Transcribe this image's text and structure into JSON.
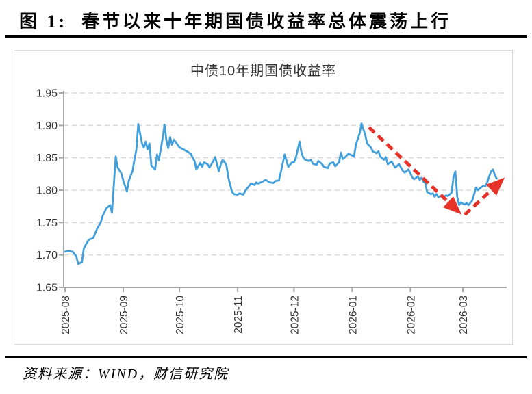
{
  "figure": {
    "title": "图 1:  春节以来十年期国债收益率总体震荡上行"
  },
  "chart_card": {
    "title": "中债10年期国债收益率"
  },
  "source": {
    "text": "资料来源：WIND，财信研究院"
  },
  "colors": {
    "line": "#41A0DC",
    "arrow": "#E63229",
    "grid": "#D9D9D9",
    "axis": "#A6A6A6",
    "label": "#333333"
  },
  "chart_data": {
    "type": "line",
    "title": "中债10年期国债收益率",
    "xlabel": "",
    "ylabel": "",
    "ylim": [
      1.65,
      1.95
    ],
    "yticks": [
      1.65,
      1.7,
      1.75,
      1.8,
      1.85,
      1.9,
      1.95
    ],
    "ytick_labels": [
      "1.65",
      "1.70",
      "1.75",
      "1.80",
      "1.85",
      "1.90",
      "1.95"
    ],
    "xticks": [
      "2025-08",
      "2025-09",
      "2025-10",
      "2025-11",
      "2025-12",
      "2026-01",
      "2026-02",
      "2026-03"
    ],
    "grid": "horizontal-dashed",
    "legend": "none",
    "series": [
      {
        "name": "中债10年期国债收益率",
        "color": "#41A0DC",
        "points": [
          [
            "2025-08-01",
            1.705
          ],
          [
            "2025-08-03",
            1.706
          ],
          [
            "2025-08-05",
            1.705
          ],
          [
            "2025-08-07",
            1.698
          ],
          [
            "2025-08-08",
            1.686
          ],
          [
            "2025-08-10",
            1.689
          ],
          [
            "2025-08-11",
            1.71
          ],
          [
            "2025-08-13",
            1.721
          ],
          [
            "2025-08-14",
            1.724
          ],
          [
            "2025-08-16",
            1.726
          ],
          [
            "2025-08-18",
            1.74
          ],
          [
            "2025-08-20",
            1.75
          ],
          [
            "2025-08-21",
            1.76
          ],
          [
            "2025-08-23",
            1.772
          ],
          [
            "2025-08-25",
            1.777
          ],
          [
            "2025-08-26",
            1.765
          ],
          [
            "2025-08-28",
            1.852
          ],
          [
            "2025-08-29",
            1.835
          ],
          [
            "2025-08-31",
            1.826
          ],
          [
            "2025-09-01",
            1.815
          ],
          [
            "2025-09-03",
            1.798
          ],
          [
            "2025-09-04",
            1.815
          ],
          [
            "2025-09-06",
            1.83
          ],
          [
            "2025-09-07",
            1.848
          ],
          [
            "2025-09-08",
            1.862
          ],
          [
            "2025-09-09",
            1.902
          ],
          [
            "2025-09-11",
            1.872
          ],
          [
            "2025-09-12",
            1.866
          ],
          [
            "2025-09-13",
            1.875
          ],
          [
            "2025-09-14",
            1.863
          ],
          [
            "2025-09-15",
            1.872
          ],
          [
            "2025-09-16",
            1.838
          ],
          [
            "2025-09-18",
            1.832
          ],
          [
            "2025-09-19",
            1.855
          ],
          [
            "2025-09-20",
            1.846
          ],
          [
            "2025-09-22",
            1.88
          ],
          [
            "2025-09-23",
            1.901
          ],
          [
            "2025-09-24",
            1.877
          ],
          [
            "2025-09-25",
            1.865
          ],
          [
            "2025-09-26",
            1.882
          ],
          [
            "2025-09-27",
            1.87
          ],
          [
            "2025-09-28",
            1.878
          ],
          [
            "2025-09-30",
            1.87
          ],
          [
            "2025-10-01",
            1.866
          ],
          [
            "2025-10-03",
            1.863
          ],
          [
            "2025-10-05",
            1.86
          ],
          [
            "2025-10-07",
            1.856
          ],
          [
            "2025-10-09",
            1.845
          ],
          [
            "2025-10-10",
            1.832
          ],
          [
            "2025-10-12",
            1.842
          ],
          [
            "2025-10-13",
            1.836
          ],
          [
            "2025-10-14",
            1.843
          ],
          [
            "2025-10-16",
            1.84
          ],
          [
            "2025-10-17",
            1.835
          ],
          [
            "2025-10-19",
            1.845
          ],
          [
            "2025-10-20",
            1.851
          ],
          [
            "2025-10-22",
            1.829
          ],
          [
            "2025-10-23",
            1.84
          ],
          [
            "2025-10-24",
            1.847
          ],
          [
            "2025-10-26",
            1.839
          ],
          [
            "2025-10-27",
            1.82
          ],
          [
            "2025-10-29",
            1.797
          ],
          [
            "2025-10-30",
            1.794
          ],
          [
            "2025-11-01",
            1.793
          ],
          [
            "2025-11-02",
            1.795
          ],
          [
            "2025-11-04",
            1.793
          ],
          [
            "2025-11-05",
            1.799
          ],
          [
            "2025-11-07",
            1.806
          ],
          [
            "2025-11-08",
            1.81
          ],
          [
            "2025-11-10",
            1.808
          ],
          [
            "2025-11-11",
            1.812
          ],
          [
            "2025-11-12",
            1.81
          ],
          [
            "2025-11-14",
            1.813
          ],
          [
            "2025-11-16",
            1.816
          ],
          [
            "2025-11-18",
            1.812
          ],
          [
            "2025-11-20",
            1.811
          ],
          [
            "2025-11-21",
            1.814
          ],
          [
            "2025-11-23",
            1.815
          ],
          [
            "2025-11-24",
            1.828
          ],
          [
            "2025-11-26",
            1.855
          ],
          [
            "2025-11-28",
            1.836
          ],
          [
            "2025-11-30",
            1.843
          ],
          [
            "2025-12-01",
            1.843
          ],
          [
            "2025-12-02",
            1.85
          ],
          [
            "2025-12-04",
            1.875
          ],
          [
            "2025-12-05",
            1.858
          ],
          [
            "2025-12-06",
            1.85
          ],
          [
            "2025-12-07",
            1.847
          ],
          [
            "2025-12-09",
            1.845
          ],
          [
            "2025-12-10",
            1.847
          ],
          [
            "2025-12-11",
            1.841
          ],
          [
            "2025-12-13",
            1.839
          ],
          [
            "2025-12-14",
            1.845
          ],
          [
            "2025-12-16",
            1.84
          ],
          [
            "2025-12-17",
            1.836
          ],
          [
            "2025-12-19",
            1.834
          ],
          [
            "2025-12-20",
            1.841
          ],
          [
            "2025-12-22",
            1.843
          ],
          [
            "2025-12-23",
            1.837
          ],
          [
            "2025-12-25",
            1.843
          ],
          [
            "2025-12-26",
            1.858
          ],
          [
            "2025-12-27",
            1.848
          ],
          [
            "2025-12-29",
            1.853
          ],
          [
            "2025-12-30",
            1.856
          ],
          [
            "2025-12-31",
            1.855
          ],
          [
            "2026-01-02",
            1.852
          ],
          [
            "2026-01-03",
            1.87
          ],
          [
            "2026-01-05",
            1.888
          ],
          [
            "2026-01-06",
            1.903
          ],
          [
            "2026-01-08",
            1.885
          ],
          [
            "2026-01-09",
            1.872
          ],
          [
            "2026-01-11",
            1.866
          ],
          [
            "2026-01-12",
            1.86
          ],
          [
            "2026-01-14",
            1.857
          ],
          [
            "2026-01-15",
            1.86
          ],
          [
            "2026-01-16",
            1.852
          ],
          [
            "2026-01-18",
            1.847
          ],
          [
            "2026-01-19",
            1.851
          ],
          [
            "2026-01-20",
            1.84
          ],
          [
            "2026-01-22",
            1.844
          ],
          [
            "2026-01-24",
            1.835
          ],
          [
            "2026-01-26",
            1.84
          ],
          [
            "2026-01-28",
            1.83
          ],
          [
            "2026-01-29",
            1.827
          ],
          [
            "2026-01-31",
            1.832
          ],
          [
            "2026-02-01",
            1.826
          ],
          [
            "2026-02-02",
            1.82
          ],
          [
            "2026-02-03",
            1.817
          ],
          [
            "2026-02-05",
            1.821
          ],
          [
            "2026-02-06",
            1.816
          ],
          [
            "2026-02-07",
            1.819
          ],
          [
            "2026-02-08",
            1.813
          ],
          [
            "2026-02-09",
            1.811
          ],
          [
            "2026-02-10",
            1.797
          ],
          [
            "2026-02-12",
            1.794
          ],
          [
            "2026-02-13",
            1.795
          ],
          [
            "2026-02-14",
            1.79
          ],
          [
            "2026-02-15",
            1.794
          ],
          [
            "2026-02-16",
            1.789
          ],
          [
            "2026-02-17",
            1.791
          ],
          [
            "2026-02-19",
            1.79
          ],
          [
            "2026-02-20",
            1.792
          ],
          [
            "2026-02-21",
            1.791
          ],
          [
            "2026-02-23",
            1.796
          ],
          [
            "2026-02-24",
            1.82
          ],
          [
            "2026-02-25",
            1.829
          ],
          [
            "2026-02-26",
            1.79
          ],
          [
            "2026-02-27",
            1.777
          ],
          [
            "2026-02-28",
            1.781
          ],
          [
            "2026-03-01",
            1.779
          ],
          [
            "2026-03-02",
            1.778
          ],
          [
            "2026-03-03",
            1.78
          ],
          [
            "2026-03-04",
            1.777
          ],
          [
            "2026-03-06",
            1.784
          ],
          [
            "2026-03-07",
            1.794
          ],
          [
            "2026-03-08",
            1.804
          ],
          [
            "2026-03-09",
            1.8
          ],
          [
            "2026-03-11",
            1.805
          ],
          [
            "2026-03-12",
            1.807
          ],
          [
            "2026-03-13",
            1.806
          ],
          [
            "2026-03-14",
            1.812
          ],
          [
            "2026-03-15",
            1.821
          ],
          [
            "2026-03-16",
            1.829
          ],
          [
            "2026-03-17",
            1.832
          ],
          [
            "2026-03-18",
            1.824
          ],
          [
            "2026-03-19",
            1.818
          ]
        ]
      }
    ],
    "annotations": [
      {
        "type": "dashed-arrow",
        "direction": "down",
        "color": "#E63229",
        "from": [
          "2026-01-10",
          1.897
        ],
        "to": [
          "2026-02-27",
          1.766
        ]
      },
      {
        "type": "dashed-arrow",
        "direction": "up",
        "color": "#E63229",
        "from": [
          "2026-03-02",
          1.762
        ],
        "to": [
          "2026-03-22",
          1.816
        ]
      }
    ]
  }
}
